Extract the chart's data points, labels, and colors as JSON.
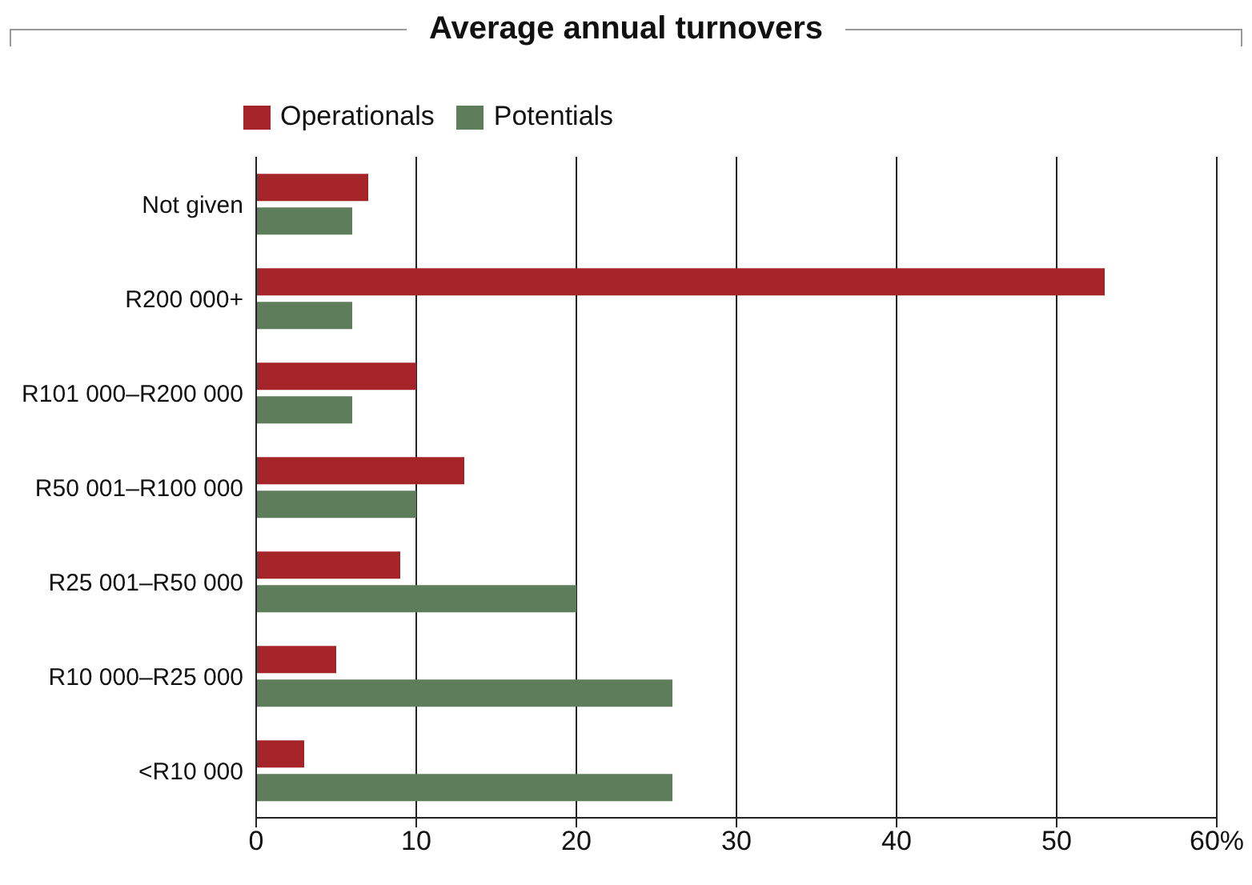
{
  "chart_data": {
    "type": "bar",
    "orientation": "horizontal",
    "title": "Average annual turnovers",
    "categories": [
      "Not given",
      "R200 000+",
      "R101 000–R200 000",
      "R50 001–R100 000",
      "R25 001–R50 000",
      "R10 000–R25 000",
      "<R10 000"
    ],
    "series": [
      {
        "name": "Operationals",
        "color": "#a52428",
        "values": [
          7,
          53,
          10,
          13,
          9,
          5,
          3
        ]
      },
      {
        "name": "Potentials",
        "color": "#5e7d5b",
        "values": [
          6,
          6,
          6,
          10,
          20,
          26,
          26
        ]
      }
    ],
    "xlim": [
      0,
      60
    ],
    "xticks": [
      0,
      10,
      20,
      30,
      40,
      50,
      {
        "value": 60,
        "label": "60%"
      }
    ],
    "grid": "x",
    "legend": "top left"
  }
}
